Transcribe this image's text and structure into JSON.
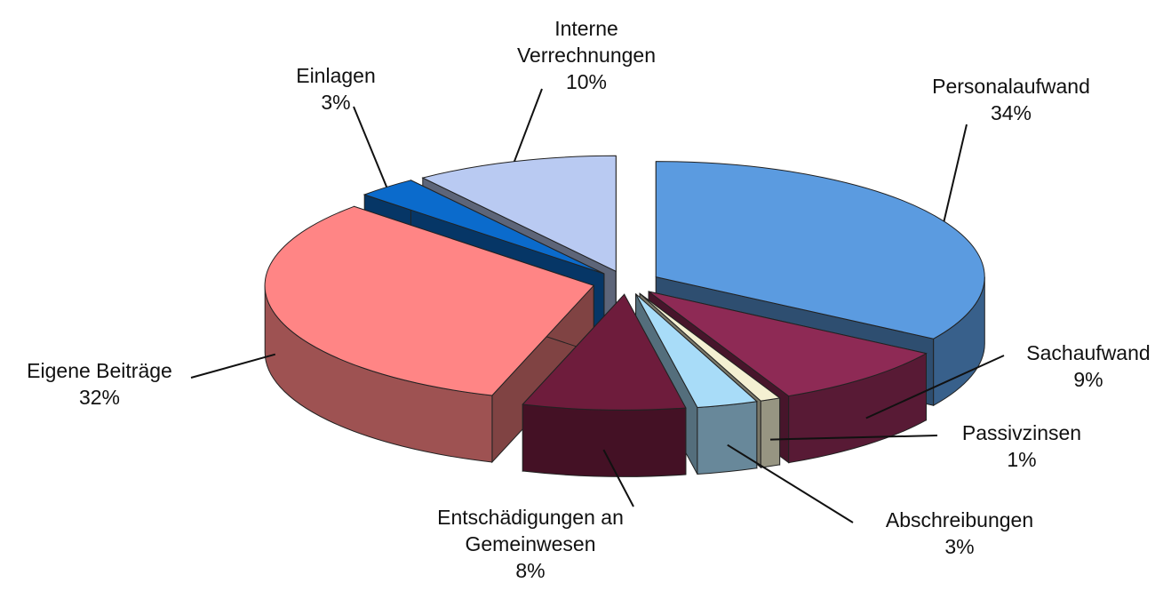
{
  "chart_data": {
    "type": "pie",
    "categories": [
      "Personalaufwand",
      "Sachaufwand",
      "Passivzinsen",
      "Abschreibungen",
      "Entschädigungen an Gemeinwesen",
      "Eigene Beiträge",
      "Einlagen",
      "Interne Verrechnungen"
    ],
    "values": [
      34,
      9,
      1,
      3,
      8,
      32,
      3,
      10
    ],
    "value_labels": [
      "34%",
      "9%",
      "1%",
      "3%",
      "8%",
      "32%",
      "3%",
      "10%"
    ],
    "colors": [
      "#5b9be0",
      "#8e2a55",
      "#f4f0d2",
      "#a8dcf8",
      "#6e1c3c",
      "#ff8585",
      "#0b6bcc",
      "#b9caf2"
    ]
  }
}
